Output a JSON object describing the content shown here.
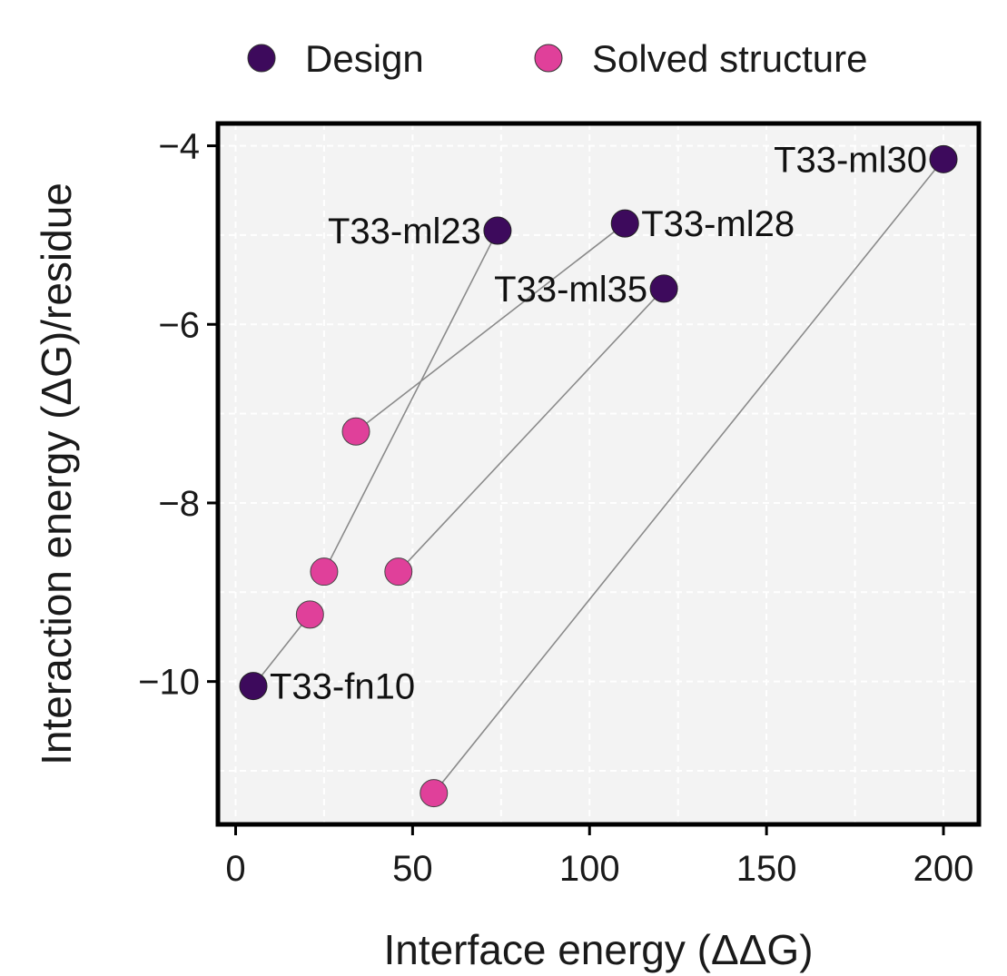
{
  "chart_data": {
    "type": "scatter",
    "xlabel": "Interface energy (ΔΔG)",
    "ylabel": "Interaction energy (ΔG)/residue",
    "xlim": [
      -5,
      210
    ],
    "ylim": [
      -11.6,
      -3.75
    ],
    "xticks": [
      0,
      50,
      100,
      150,
      200
    ],
    "yticks": [
      -4,
      -6,
      -8,
      -10
    ],
    "xtick_labels": [
      "0",
      "50",
      "100",
      "150",
      "200"
    ],
    "ytick_labels": [
      "−4",
      "−6",
      "−8",
      "−10"
    ],
    "grid": true,
    "legend_position": "top",
    "legend": [
      {
        "name": "Design",
        "color": "#3d0a5c"
      },
      {
        "name": "Solved structure",
        "color": "#e0409a"
      }
    ],
    "pairs": [
      {
        "label": "T33-ml30",
        "label_side": "left",
        "design": {
          "x": 200,
          "y": -4.15
        },
        "solved": {
          "x": 56,
          "y": -11.25
        }
      },
      {
        "label": "T33-ml23",
        "label_side": "left",
        "design": {
          "x": 74,
          "y": -4.95
        },
        "solved": {
          "x": 25,
          "y": -8.77
        }
      },
      {
        "label": "T33-ml28",
        "label_side": "right",
        "design": {
          "x": 110,
          "y": -4.87
        },
        "solved": {
          "x": 34,
          "y": -7.2
        }
      },
      {
        "label": "T33-ml35",
        "label_side": "left",
        "design": {
          "x": 121,
          "y": -5.6
        },
        "solved": {
          "x": 46,
          "y": -8.77
        }
      },
      {
        "label": "T33-fn10",
        "label_side": "right",
        "design": {
          "x": 5,
          "y": -10.05
        },
        "solved": {
          "x": 21,
          "y": -9.25
        }
      }
    ]
  }
}
